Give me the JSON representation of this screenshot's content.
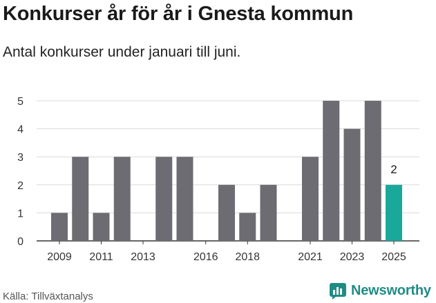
{
  "header": {
    "title": "Konkurser år för år i Gnesta kommun",
    "subtitle": "Antal konkurser under januari till juni."
  },
  "footer": {
    "source": "Källa: Tillväxtanalys",
    "brand": "Newsworthy",
    "brand_icon": "bar-chart-logo-icon"
  },
  "colors": {
    "bar": "#6d6c72",
    "highlight": "#1aa89b",
    "brand": "#1f8c84",
    "grid": "#d9d9d9"
  },
  "chart_data": {
    "type": "bar",
    "title": "Konkurser år för år i Gnesta kommun",
    "subtitle": "Antal konkurser under januari till juni.",
    "categories": [
      2009,
      2010,
      2011,
      2012,
      2013,
      2014,
      2015,
      2016,
      2017,
      2018,
      2019,
      2020,
      2021,
      2022,
      2023,
      2024,
      2025
    ],
    "values": [
      1,
      3,
      1,
      3,
      0,
      3,
      3,
      0,
      2,
      1,
      2,
      null,
      3,
      5,
      4,
      5,
      2
    ],
    "highlight_category": 2025,
    "data_labels": [
      {
        "category": 2025,
        "text": "2"
      }
    ],
    "x_tick_labels": [
      "2009",
      "2011",
      "2013",
      "2016",
      "2018",
      "2021",
      "2023",
      "2025"
    ],
    "y_ticks": [
      0,
      1,
      2,
      3,
      4,
      5
    ],
    "ylim": [
      0,
      5
    ],
    "grid": true,
    "legend": "none"
  }
}
